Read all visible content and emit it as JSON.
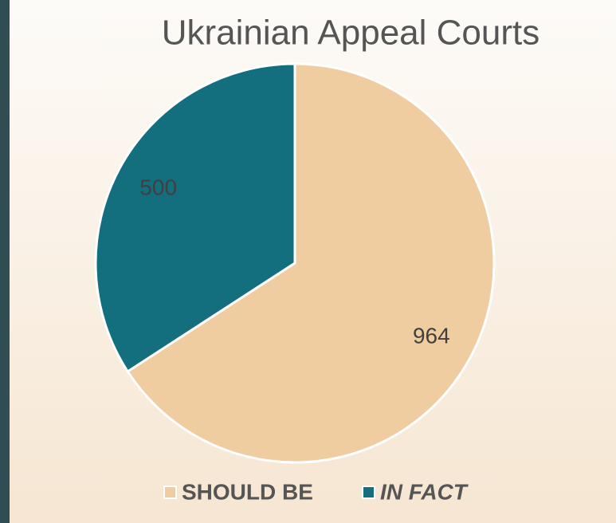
{
  "chart_data": {
    "type": "pie",
    "title": "Ukrainian Appeal Courts",
    "categories": [
      "SHOULD BE",
      "IN FACT"
    ],
    "values": [
      964,
      500
    ],
    "colors": [
      "#f0cda0",
      "#136e7e"
    ]
  }
}
